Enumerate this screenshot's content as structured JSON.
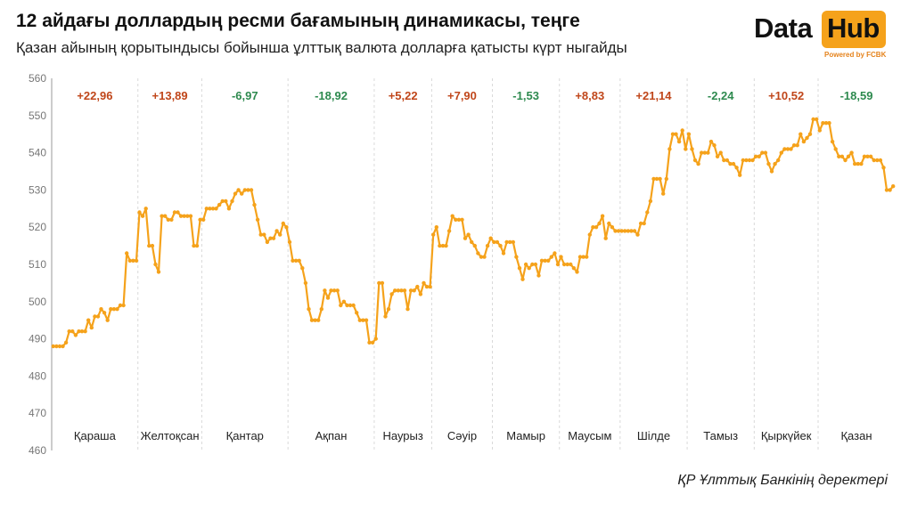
{
  "header": {
    "title": "12 айдағы доллардың ресми бағамының динамикасы, теңге",
    "subtitle": "Қазан айының қорытындысы бойынша ұлттық валюта долларға қатысты күрт ныгайды"
  },
  "logo": {
    "word1": "Data",
    "word2": "Hub",
    "tagline": "Powered by FCBK"
  },
  "source": "ҚР Ұлттық Банкінің деректері",
  "colors": {
    "line": "#f5a21b",
    "positive": "#c0461a",
    "negative": "#2e8a4f",
    "grid": "#d9d9d9",
    "axis": "#999999"
  },
  "chart_data": {
    "type": "line",
    "title": "12 айдағы доллардың ресми бағамының динамикасы, теңге",
    "xlabel": "",
    "ylabel": "",
    "ylim": [
      460,
      560
    ],
    "yticks": [
      460,
      470,
      480,
      490,
      500,
      510,
      520,
      530,
      540,
      550,
      560
    ],
    "grid": "vertical dashed month separators",
    "months": [
      {
        "label": "Қараша",
        "change": "+22,96",
        "direction": "up",
        "values": [
          488,
          488,
          488,
          488,
          489,
          492,
          492,
          491,
          492,
          492,
          492,
          495,
          493,
          496,
          496,
          498,
          497,
          495,
          498,
          498,
          498,
          499,
          499,
          513,
          511,
          511,
          511
        ]
      },
      {
        "label": "Желтоқсан",
        "change": "+13,89",
        "direction": "up",
        "values": [
          524,
          523,
          525,
          515,
          515,
          510,
          508,
          523,
          523,
          522,
          522,
          524,
          524,
          523,
          523,
          523,
          523,
          515,
          515,
          522
        ]
      },
      {
        "label": "Қантар",
        "change": "-6,97",
        "direction": "down",
        "values": [
          522,
          525,
          525,
          525,
          525,
          526,
          527,
          527,
          525,
          527,
          529,
          530,
          529,
          530,
          530,
          530,
          526,
          522,
          518,
          518,
          516,
          517,
          517,
          519,
          518,
          521,
          520
        ]
      },
      {
        "label": "Ақпан",
        "change": "-18,92",
        "direction": "down",
        "values": [
          516,
          511,
          511,
          511,
          509,
          505,
          498,
          495,
          495,
          495,
          498,
          503,
          501,
          503,
          503,
          503,
          499,
          500,
          499,
          499,
          499,
          497,
          495,
          495,
          495,
          489,
          489
        ]
      },
      {
        "label": "Наурыз",
        "change": "+5,22",
        "direction": "up",
        "values": [
          490,
          505,
          505,
          496,
          498,
          502,
          503,
          503,
          503,
          503,
          498,
          503,
          503,
          504,
          502,
          505,
          504,
          504
        ]
      },
      {
        "label": "Сәуір",
        "change": "+7,90",
        "direction": "up",
        "values": [
          518,
          520,
          515,
          515,
          515,
          519,
          523,
          522,
          522,
          522,
          517,
          518,
          516,
          515,
          513,
          512,
          512,
          515,
          517
        ]
      },
      {
        "label": "Мамыр",
        "change": "-1,53",
        "direction": "down",
        "values": [
          516,
          516,
          515,
          513,
          516,
          516,
          516,
          512,
          509,
          506,
          510,
          509,
          510,
          510,
          507,
          511,
          511,
          511,
          512,
          513,
          510
        ]
      },
      {
        "label": "Маусым",
        "change": "+8,83",
        "direction": "up",
        "values": [
          512,
          510,
          510,
          510,
          509,
          508,
          512,
          512,
          512,
          518,
          520,
          520,
          521,
          523,
          517,
          521,
          520,
          519,
          519
        ]
      },
      {
        "label": "Шілде",
        "change": "+21,14",
        "direction": "up",
        "values": [
          519,
          519,
          519,
          519,
          519,
          518,
          521,
          521,
          524,
          527,
          533,
          533,
          533,
          529,
          533,
          541,
          545,
          545,
          543,
          546,
          541
        ]
      },
      {
        "label": "Тамыз",
        "change": "-2,24",
        "direction": "down",
        "values": [
          545,
          541,
          538,
          537,
          540,
          540,
          540,
          543,
          542,
          539,
          540,
          538,
          538,
          537,
          537,
          536,
          534,
          538,
          538,
          538,
          538
        ]
      },
      {
        "label": "Қыркүйек",
        "change": "+10,52",
        "direction": "up",
        "values": [
          539,
          539,
          540,
          540,
          537,
          535,
          537,
          538,
          540,
          541,
          541,
          541,
          542,
          542,
          545,
          543,
          544,
          545,
          549,
          549
        ]
      },
      {
        "label": "Қазан",
        "change": "-18,59",
        "direction": "down",
        "values": [
          546,
          548,
          548,
          548,
          543,
          541,
          539,
          539,
          538,
          539,
          540,
          537,
          537,
          537,
          539,
          539,
          539,
          538,
          538,
          538,
          536,
          530,
          530,
          531
        ]
      }
    ]
  }
}
